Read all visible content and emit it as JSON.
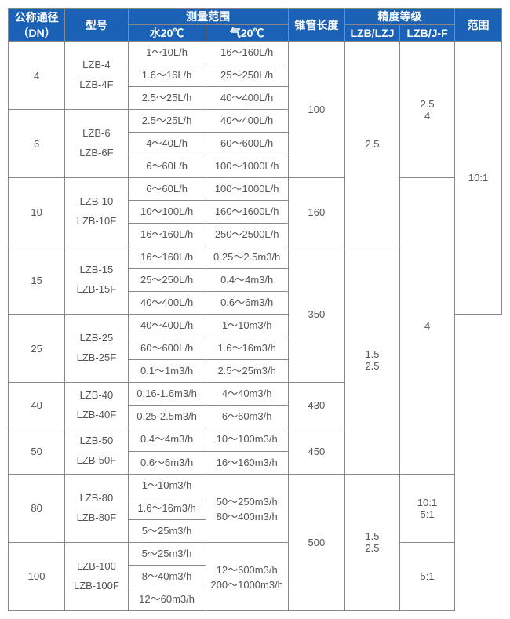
{
  "headers": {
    "dn": "公称通径（DN）",
    "model": "型号",
    "measure": "测量范围",
    "water": "水20℃",
    "gas": "气20℃",
    "length": "锥管长度",
    "precision": "精度等级",
    "p1": "LZB/LZJ",
    "p2": "LZB/J-F",
    "range": "范围"
  },
  "rows": [
    {
      "dn": "4",
      "models": [
        "LZB-4",
        "LZB-4F"
      ],
      "water": [
        "1～10L/h",
        "1.6～16L/h",
        "2.5～25L/h"
      ],
      "gas": [
        "16～160L/h",
        "25～250L/h",
        "40～400L/h"
      ]
    },
    {
      "dn": "6",
      "models": [
        "LZB-6",
        "LZB-6F"
      ],
      "water": [
        "2.5～25L/h",
        "4～40L/h",
        "6～60L/h"
      ],
      "gas": [
        "40～400L/h",
        "60～600L/h",
        "100～1000L/h"
      ]
    },
    {
      "dn": "10",
      "models": [
        "LZB-10",
        "LZB-10F"
      ],
      "water": [
        "6～60L/h",
        "10～100L/h",
        "16～160L/h"
      ],
      "gas": [
        "100～1000L/h",
        "160～1600L/h",
        "250～2500L/h"
      ]
    },
    {
      "dn": "15",
      "models": [
        "LZB-15",
        "LZB-15F"
      ],
      "water": [
        "16～160L/h",
        "25～250L/h",
        "40～400L/h"
      ],
      "gas": [
        "0.25～2.5m3/h",
        "0.4～4m3/h",
        "0.6～6m3/h"
      ]
    },
    {
      "dn": "25",
      "models": [
        "LZB-25",
        "LZB-25F"
      ],
      "water": [
        "40～400L/h",
        "60～600L/h",
        "0.1～1m3/h"
      ],
      "gas": [
        "1～10m3/h",
        "1.6～16m3/h",
        "2.5～25m3/h"
      ]
    },
    {
      "dn": "40",
      "models": [
        "LZB-40",
        "LZB-40F"
      ],
      "water": [
        "0.16-1.6m3/h",
        "0.25-2.5m3/h"
      ],
      "gas": [
        "4～40m3/h",
        "6～60m3/h"
      ]
    },
    {
      "dn": "50",
      "models": [
        "LZB-50",
        "LZB-50F"
      ],
      "water": [
        "0.4～4m3/h",
        "0.6～6m3/h"
      ],
      "gas": [
        "10～100m3/h",
        "16～160m3/h"
      ]
    },
    {
      "dn": "80",
      "models": [
        "LZB-80",
        "LZB-80F"
      ],
      "water": [
        "1～10m3/h",
        "1.6～16m3/h",
        "5～25m3/h"
      ],
      "gas": [
        "50～250m3/h",
        "80～400m3/h"
      ]
    },
    {
      "dn": "100",
      "models": [
        "LZB-100",
        "LZB-100F"
      ],
      "water": [
        "5～25m3/h",
        "8～40m3/h",
        "12～60m3/h"
      ],
      "gas": [
        "12～600m3/h",
        "200～1000m3/h"
      ]
    }
  ],
  "lengths": {
    "l100": "100",
    "l160": "160",
    "l350": "350",
    "l430": "430",
    "l450": "450",
    "l500": "500"
  },
  "precision": {
    "p25": "2.5",
    "p15_25a": "1.5",
    "p15_25b": "2.5",
    "pf25_4a": "2.5",
    "pf25_4b": "4",
    "pf4": "4"
  },
  "ranges": {
    "r10": "10:1",
    "r10_5a": "10:1",
    "r10_5b": "5:1",
    "r5": "5:1"
  }
}
